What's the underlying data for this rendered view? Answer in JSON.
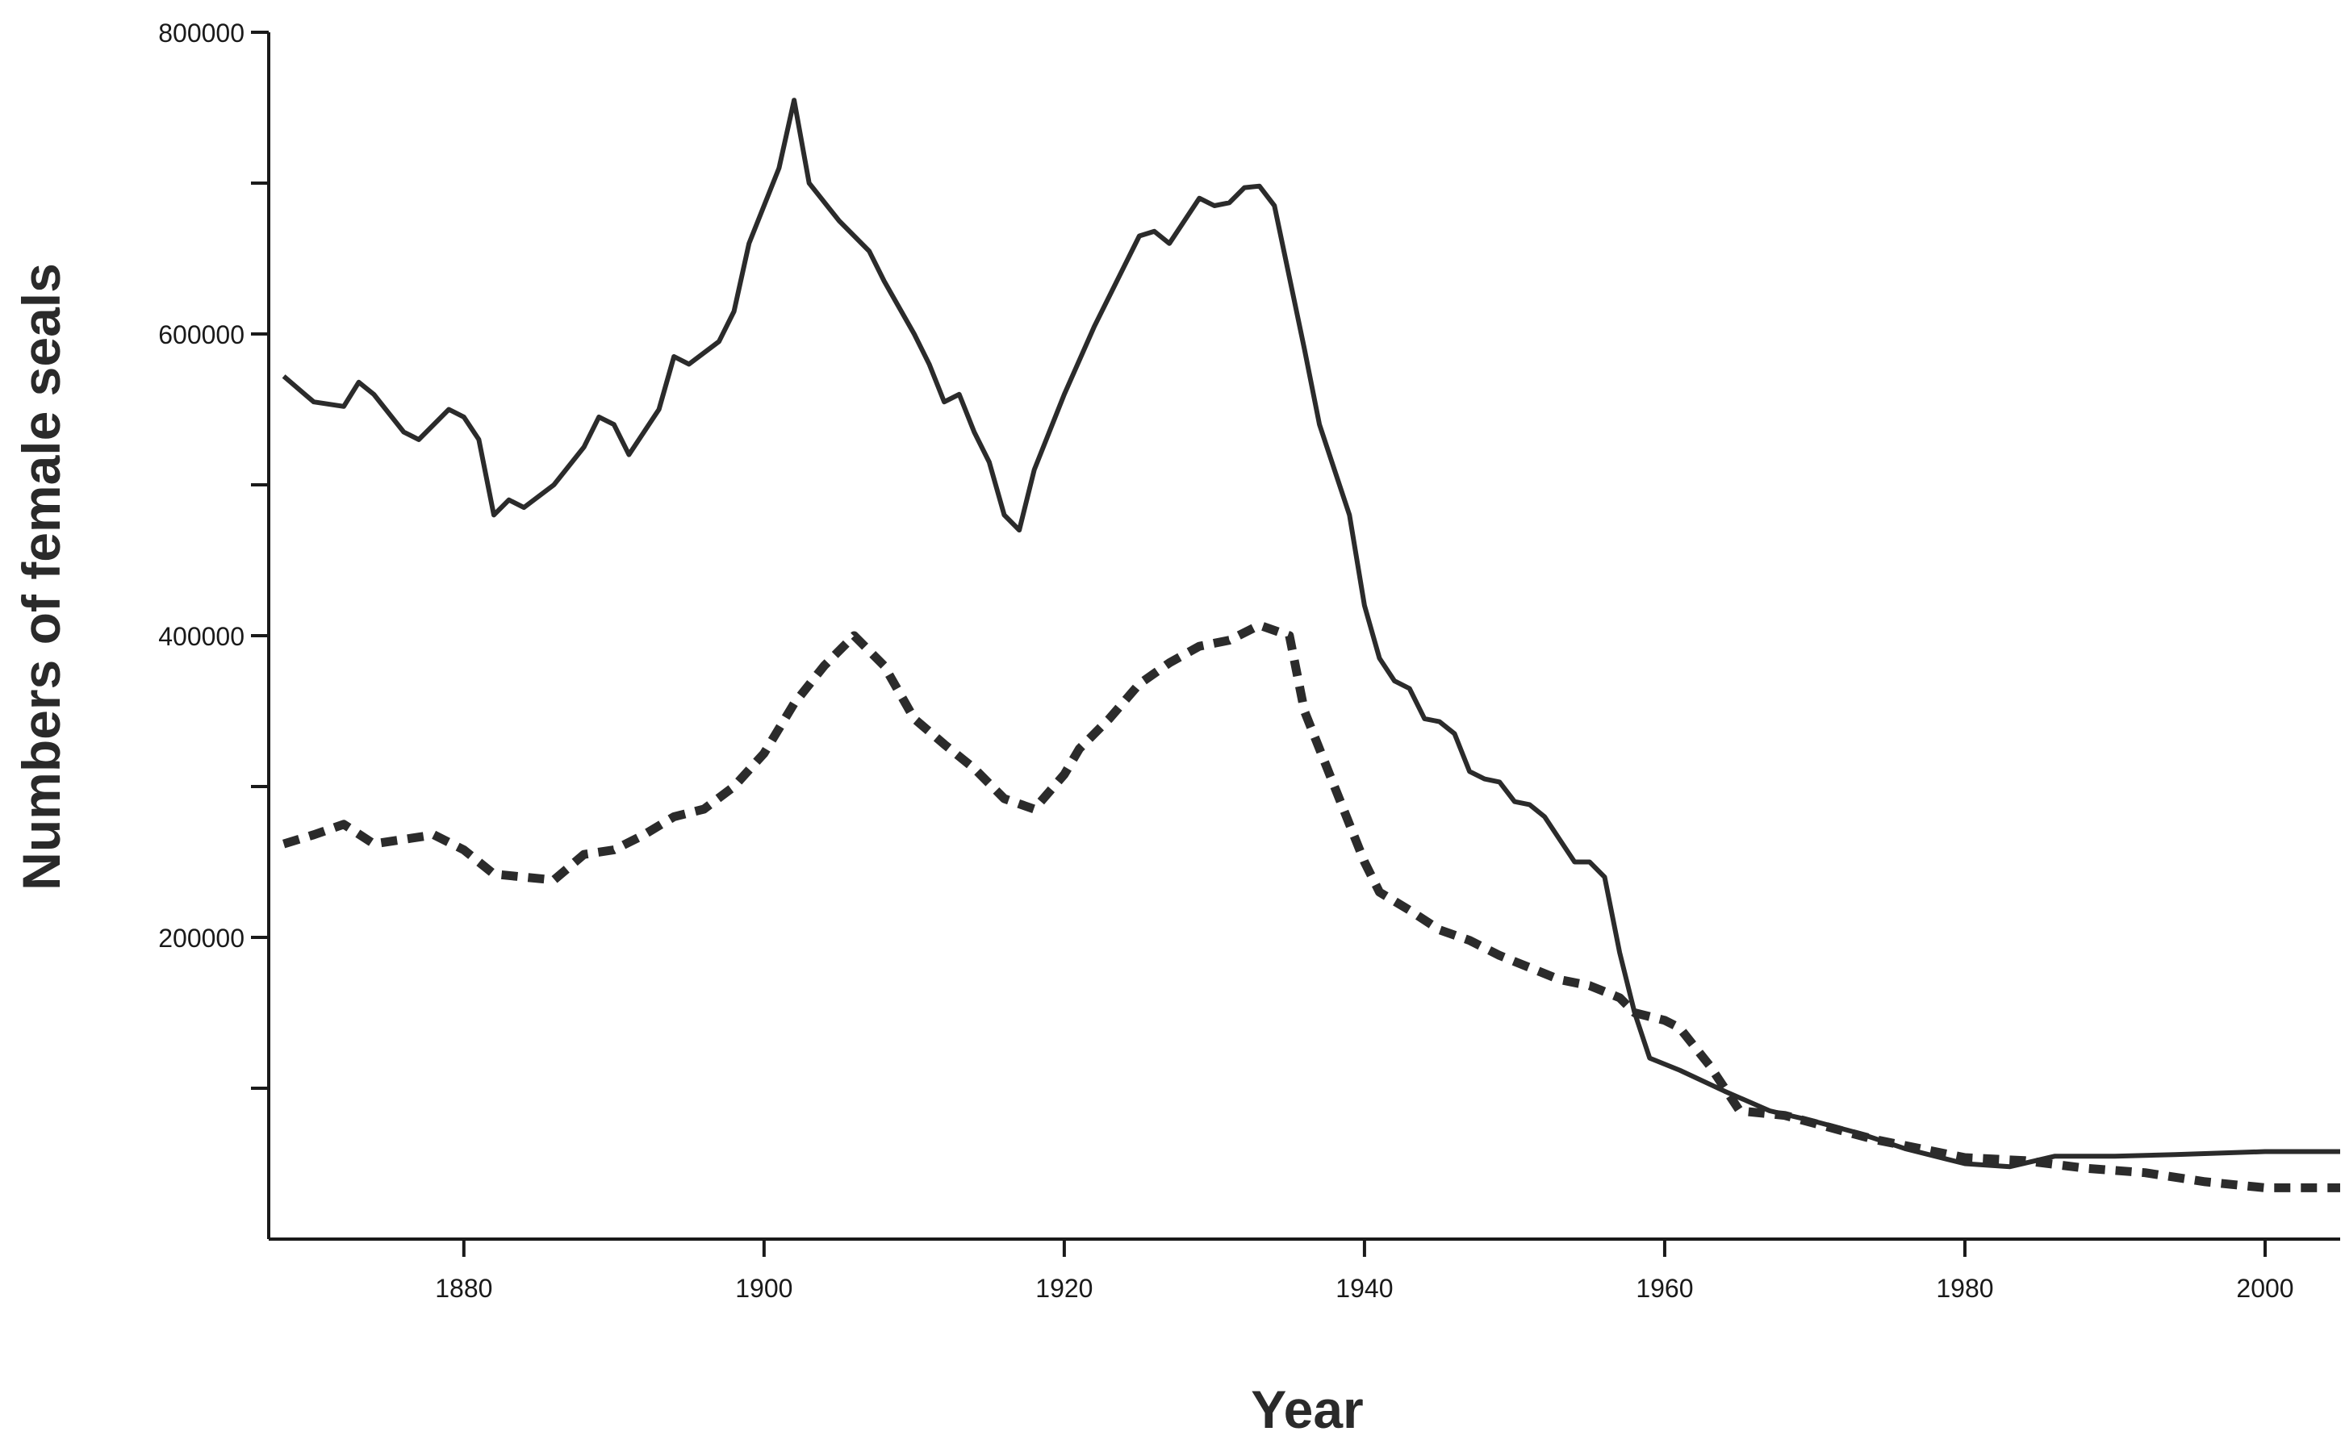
{
  "chart_data": {
    "type": "line",
    "title": "",
    "xlabel": "Year",
    "ylabel": "Numbers of female seals",
    "xlim": [
      1867,
      2005
    ],
    "ylim": [
      0,
      800000
    ],
    "x_ticks": [
      1880,
      1900,
      1920,
      1940,
      1960,
      1980,
      2000
    ],
    "x_tick_labels": [
      "1880",
      "1900",
      "1920",
      "1940",
      "1960",
      "1980",
      "2000"
    ],
    "y_ticks": [
      100000,
      200000,
      300000,
      400000,
      500000,
      600000,
      700000,
      800000
    ],
    "y_tick_labels": [
      "",
      "200000",
      "",
      "400000",
      "",
      "600000",
      "",
      "800000"
    ],
    "grid": false,
    "legend": "none",
    "series": [
      {
        "style": "solid",
        "color": "#2b2b2b",
        "points": [
          [
            1868,
            572000
          ],
          [
            1870,
            555000
          ],
          [
            1872,
            552000
          ],
          [
            1873,
            568000
          ],
          [
            1874,
            560000
          ],
          [
            1876,
            535000
          ],
          [
            1877,
            530000
          ],
          [
            1879,
            550000
          ],
          [
            1880,
            545000
          ],
          [
            1881,
            530000
          ],
          [
            1882,
            480000
          ],
          [
            1883,
            490000
          ],
          [
            1884,
            485000
          ],
          [
            1886,
            500000
          ],
          [
            1888,
            525000
          ],
          [
            1889,
            545000
          ],
          [
            1890,
            540000
          ],
          [
            1891,
            520000
          ],
          [
            1893,
            550000
          ],
          [
            1894,
            585000
          ],
          [
            1895,
            580000
          ],
          [
            1897,
            595000
          ],
          [
            1898,
            615000
          ],
          [
            1899,
            660000
          ],
          [
            1901,
            710000
          ],
          [
            1902,
            755000
          ],
          [
            1903,
            700000
          ],
          [
            1905,
            675000
          ],
          [
            1907,
            655000
          ],
          [
            1908,
            635000
          ],
          [
            1910,
            600000
          ],
          [
            1911,
            580000
          ],
          [
            1912,
            555000
          ],
          [
            1913,
            560000
          ],
          [
            1914,
            535000
          ],
          [
            1915,
            515000
          ],
          [
            1916,
            480000
          ],
          [
            1917,
            470000
          ],
          [
            1918,
            510000
          ],
          [
            1920,
            560000
          ],
          [
            1922,
            605000
          ],
          [
            1924,
            645000
          ],
          [
            1925,
            665000
          ],
          [
            1926,
            668000
          ],
          [
            1927,
            660000
          ],
          [
            1929,
            690000
          ],
          [
            1930,
            685000
          ],
          [
            1931,
            687000
          ],
          [
            1932,
            697000
          ],
          [
            1933,
            698000
          ],
          [
            1934,
            685000
          ],
          [
            1936,
            590000
          ],
          [
            1937,
            540000
          ],
          [
            1939,
            480000
          ],
          [
            1940,
            420000
          ],
          [
            1941,
            385000
          ],
          [
            1942,
            370000
          ],
          [
            1943,
            365000
          ],
          [
            1944,
            345000
          ],
          [
            1945,
            343000
          ],
          [
            1946,
            335000
          ],
          [
            1947,
            310000
          ],
          [
            1948,
            305000
          ],
          [
            1949,
            303000
          ],
          [
            1950,
            290000
          ],
          [
            1951,
            288000
          ],
          [
            1952,
            280000
          ],
          [
            1953,
            265000
          ],
          [
            1954,
            250000
          ],
          [
            1955,
            250000
          ],
          [
            1956,
            240000
          ],
          [
            1957,
            190000
          ],
          [
            1958,
            150000
          ],
          [
            1959,
            120000
          ],
          [
            1961,
            112000
          ],
          [
            1964,
            98000
          ],
          [
            1967,
            85000
          ],
          [
            1970,
            78000
          ],
          [
            1973,
            70000
          ],
          [
            1976,
            60000
          ],
          [
            1980,
            50000
          ],
          [
            1983,
            48000
          ],
          [
            1986,
            55000
          ],
          [
            1990,
            55000
          ],
          [
            1994,
            56000
          ],
          [
            2000,
            58000
          ],
          [
            2005,
            58000
          ]
        ]
      },
      {
        "style": "dashed",
        "color": "#2b2b2b",
        "points": [
          [
            1868,
            262000
          ],
          [
            1870,
            268000
          ],
          [
            1872,
            275000
          ],
          [
            1874,
            262000
          ],
          [
            1876,
            265000
          ],
          [
            1878,
            268000
          ],
          [
            1880,
            258000
          ],
          [
            1882,
            242000
          ],
          [
            1884,
            240000
          ],
          [
            1886,
            238000
          ],
          [
            1888,
            255000
          ],
          [
            1890,
            258000
          ],
          [
            1892,
            268000
          ],
          [
            1894,
            280000
          ],
          [
            1896,
            285000
          ],
          [
            1898,
            300000
          ],
          [
            1900,
            322000
          ],
          [
            1902,
            355000
          ],
          [
            1904,
            380000
          ],
          [
            1906,
            400000
          ],
          [
            1908,
            380000
          ],
          [
            1910,
            345000
          ],
          [
            1912,
            328000
          ],
          [
            1914,
            312000
          ],
          [
            1916,
            292000
          ],
          [
            1918,
            285000
          ],
          [
            1920,
            308000
          ],
          [
            1921,
            325000
          ],
          [
            1923,
            345000
          ],
          [
            1925,
            368000
          ],
          [
            1927,
            382000
          ],
          [
            1929,
            393000
          ],
          [
            1931,
            397000
          ],
          [
            1933,
            407000
          ],
          [
            1935,
            400000
          ],
          [
            1936,
            350000
          ],
          [
            1938,
            300000
          ],
          [
            1940,
            250000
          ],
          [
            1941,
            230000
          ],
          [
            1943,
            218000
          ],
          [
            1945,
            205000
          ],
          [
            1947,
            198000
          ],
          [
            1949,
            188000
          ],
          [
            1951,
            180000
          ],
          [
            1953,
            172000
          ],
          [
            1955,
            168000
          ],
          [
            1957,
            160000
          ],
          [
            1958,
            150000
          ],
          [
            1960,
            145000
          ],
          [
            1961,
            140000
          ],
          [
            1963,
            115000
          ],
          [
            1965,
            85000
          ],
          [
            1968,
            82000
          ],
          [
            1971,
            74000
          ],
          [
            1974,
            66000
          ],
          [
            1977,
            60000
          ],
          [
            1980,
            54000
          ],
          [
            1984,
            52000
          ],
          [
            1988,
            47000
          ],
          [
            1992,
            44000
          ],
          [
            1996,
            38000
          ],
          [
            2000,
            34000
          ],
          [
            2005,
            34000
          ]
        ]
      }
    ]
  }
}
